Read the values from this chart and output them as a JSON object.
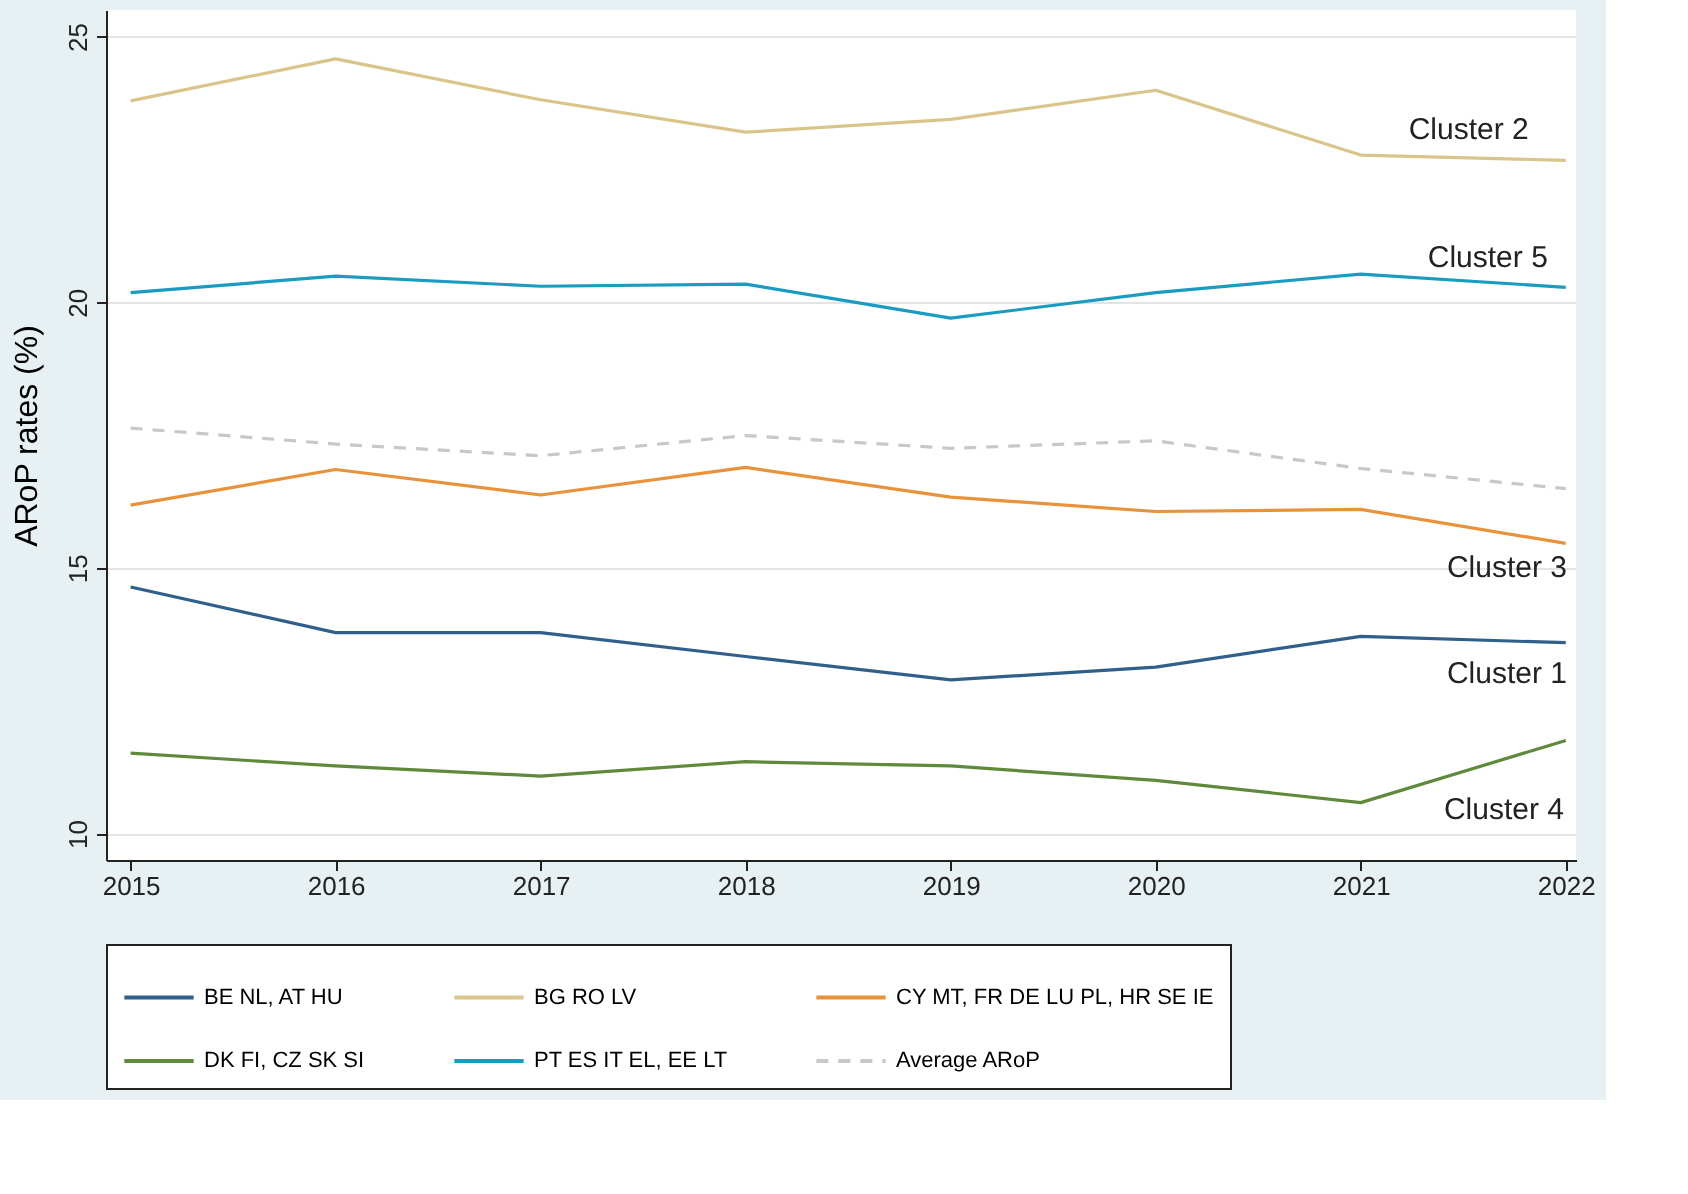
{
  "chart_data": {
    "type": "line",
    "ylabel": "ARoP rates (%)",
    "x": [
      2015,
      2016,
      2017,
      2018,
      2019,
      2020,
      2021,
      2022
    ],
    "xlim": [
      2014.88,
      2022.05
    ],
    "xticks": [
      2015,
      2016,
      2017,
      2018,
      2019,
      2020,
      2021,
      2022
    ],
    "ylim": [
      9.5,
      25.5
    ],
    "yticks": [
      10,
      15,
      20,
      25
    ],
    "grid": "y",
    "legend": "bottom",
    "line_style": "solid",
    "series": [
      {
        "name": "BE NL, AT HU",
        "color": "#2f5f8a",
        "values": [
          14.64,
          13.78,
          13.78,
          13.33,
          12.89,
          13.13,
          13.71,
          13.59
        ]
      },
      {
        "name": "BG RO LV",
        "color": "#d9c48a",
        "values": [
          23.79,
          24.58,
          23.81,
          23.2,
          23.44,
          23.99,
          22.77,
          22.67
        ]
      },
      {
        "name": "CY MT, FR DE LU PL, HR SE IE",
        "color": "#e8923a",
        "values": [
          16.18,
          16.85,
          16.37,
          16.89,
          16.33,
          16.06,
          16.1,
          15.46
        ]
      },
      {
        "name": "DK FI, CZ SK SI",
        "color": "#5f8a3c",
        "values": [
          11.51,
          11.27,
          11.08,
          11.35,
          11.27,
          11.0,
          10.58,
          11.75
        ]
      },
      {
        "name": "PT ES IT EL, EE LT",
        "color": "#1a9cc0",
        "values": [
          20.18,
          20.49,
          20.3,
          20.34,
          19.7,
          20.18,
          20.53,
          20.28
        ]
      },
      {
        "name": "Average ARoP",
        "color": "#c8c8c8",
        "line_style": "dashed",
        "values": [
          17.63,
          17.33,
          17.11,
          17.49,
          17.25,
          17.39,
          16.87,
          16.49
        ]
      }
    ],
    "annotations": [
      "Cluster 2",
      "Cluster 5",
      "Cluster 3",
      "Cluster 1",
      "Cluster 4"
    ]
  }
}
